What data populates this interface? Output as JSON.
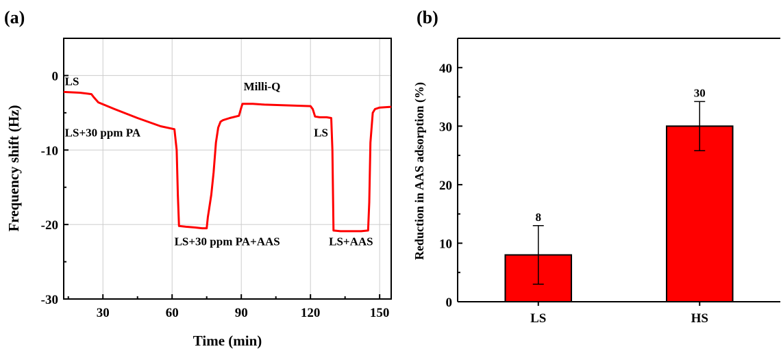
{
  "chart_data": [
    {
      "type": "line",
      "panel_label": "(a)",
      "xlabel": "Time (min)",
      "ylabel": "Frequency shift (Hz)",
      "xlim": [
        13,
        155
      ],
      "ylim": [
        -30,
        5
      ],
      "xticks": [
        30,
        60,
        90,
        120,
        150
      ],
      "yticks": [
        0,
        -10,
        -20,
        -30
      ],
      "grid": true,
      "color": "#ff0000",
      "series": [
        {
          "x": [
            13,
            20,
            25,
            26,
            28,
            35,
            45,
            55,
            61,
            62,
            62.5,
            63,
            66,
            70,
            73,
            75,
            75.5,
            76,
            77,
            78,
            79,
            80,
            81,
            82,
            85,
            89,
            90,
            90.5,
            95,
            100,
            110,
            120,
            121,
            122,
            124,
            127,
            129,
            129.5,
            130,
            133,
            138,
            142,
            145,
            145.5,
            146,
            147,
            148,
            150,
            155
          ],
          "y": [
            -2.2,
            -2.3,
            -2.5,
            -2.9,
            -3.6,
            -4.5,
            -5.7,
            -6.8,
            -7.2,
            -10,
            -16,
            -20.2,
            -20.3,
            -20.4,
            -20.5,
            -20.5,
            -19,
            -18,
            -16,
            -13,
            -9,
            -7,
            -6.2,
            -6,
            -5.7,
            -5.4,
            -4.3,
            -3.8,
            -3.8,
            -3.9,
            -4,
            -4.1,
            -4.5,
            -5.5,
            -5.6,
            -5.6,
            -5.7,
            -10,
            -20.8,
            -20.9,
            -20.9,
            -20.9,
            -20.8,
            -17,
            -9,
            -5,
            -4.5,
            -4.3,
            -4.2
          ]
        }
      ],
      "annotations": [
        {
          "text": "LS",
          "x": 13.5,
          "y": -1.3
        },
        {
          "text": "LS+30 ppm PA",
          "x": 13.5,
          "y": -8.2
        },
        {
          "text": "Milli-Q",
          "x": 91,
          "y": -2.0
        },
        {
          "text": "LS+30 ppm PA+AAS",
          "x": 61,
          "y": -22.8
        },
        {
          "text": "LS",
          "x": 121.5,
          "y": -8.2
        },
        {
          "text": "LS+AAS",
          "x": 128,
          "y": -22.8
        }
      ]
    },
    {
      "type": "bar",
      "panel_label": "(b)",
      "xlabel": "",
      "ylabel": "Reduction in AAS adsorption (%)",
      "categories": [
        "LS",
        "HS"
      ],
      "values": [
        8,
        30
      ],
      "errors": [
        5,
        4.2
      ],
      "data_labels": [
        "8",
        "30"
      ],
      "ylim": [
        0,
        45
      ],
      "yticks": [
        0,
        10,
        20,
        30,
        40
      ],
      "grid": false,
      "color": "#ff0000"
    }
  ]
}
